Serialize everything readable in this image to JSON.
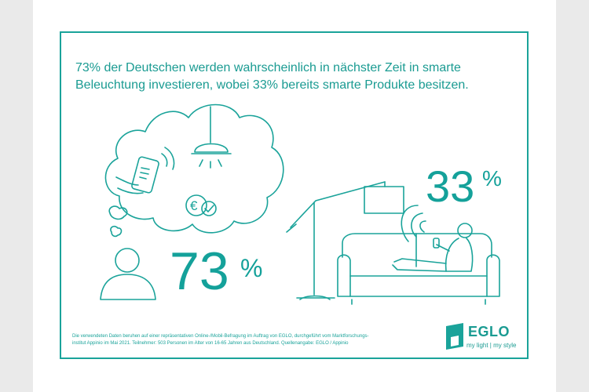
{
  "headline": {
    "line1": "73% der Deutschen werden wahrscheinlich in nächster Zeit in smarte",
    "line2": "Beleuchtung investieren, wobei 33% bereits smarte Produkte besitzen."
  },
  "stats": {
    "left_value": "73",
    "left_unit": "%",
    "right_value": "33",
    "right_unit": "%"
  },
  "footnote": {
    "line1": "Die verwendeten Daten beruhen auf einer repräsentativen Online-/Mobil-Befragung im Auftrag von EGLO, durchgeführt vom Marktforschungs-",
    "line2": "institut Appinio im Mai 2021. Teilnehmer: 503 Personen im Alter von 16-65 Jahren aus Deutschland. Quellenangabe: EGLO / Appinio"
  },
  "brand": {
    "name": "EGLO",
    "tagline": "my light | my style"
  },
  "icon_symbol": "€",
  "colors": {
    "accent": "#1aa39a",
    "background": "#ffffff",
    "outer": "#eaeaea"
  }
}
